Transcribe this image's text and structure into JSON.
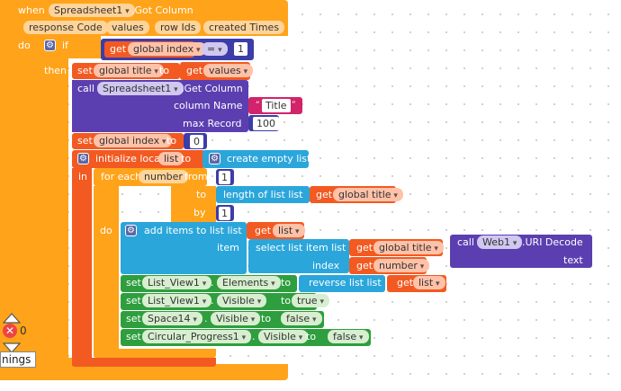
{
  "event": {
    "when": "when",
    "component": "Spreadsheet1",
    "event": ".Got Column",
    "params": [
      "response Code",
      "values",
      "row Ids",
      "created Times"
    ],
    "do": "do"
  },
  "if_block": {
    "if": "if",
    "then": "then",
    "get": "get",
    "var": "global index",
    "op": "=",
    "num": "1"
  },
  "set_title": {
    "set": "set",
    "var": "global title",
    "to": "to",
    "get": "get",
    "val": "values"
  },
  "call_getcol": {
    "call": "call",
    "component": "Spreadsheet1",
    "method": ".Get Column",
    "arg1": "column Name",
    "str": "Title",
    "arg2": "max Record",
    "num": "100"
  },
  "set_index": {
    "set": "set",
    "var": "global index",
    "to": "to",
    "num": "0"
  },
  "init_local": {
    "label": "initialize local",
    "name": "list",
    "to": "to",
    "in": "in",
    "create": "create empty list"
  },
  "foreach": {
    "for_each": "for each",
    "var": "number",
    "from": "from",
    "from_val": "1",
    "to": "to",
    "length": "length of list  list",
    "get": "get",
    "var2": "global title",
    "by": "by",
    "by_val": "1",
    "do": "do"
  },
  "add_items": {
    "label": "add items to list  list",
    "get": "get",
    "var": "list",
    "item": "item",
    "select": "select list item  list",
    "get2": "get",
    "var2": "global title",
    "index": "index",
    "get3": "get",
    "var3": "number",
    "call": "call",
    "comp": "Web1",
    "method": ".URI Decode",
    "text": "text"
  },
  "sets": [
    {
      "set": "set",
      "comp": "List_View1",
      "prop": "Elements",
      "to": "to",
      "val": "reverse list  list",
      "get": "get",
      "var": "list"
    },
    {
      "set": "set",
      "comp": "List_View1",
      "prop": "Visible",
      "to": "to",
      "val": "true"
    },
    {
      "set": "set",
      "comp": "Space14",
      "prop": "Visible",
      "to": "to",
      "val": "false"
    },
    {
      "set": "set",
      "comp": "Circular_Progress1",
      "prop": "Visible",
      "to": "to",
      "val": "false"
    }
  ],
  "warnings": {
    "count": "0",
    "label": "nings"
  }
}
